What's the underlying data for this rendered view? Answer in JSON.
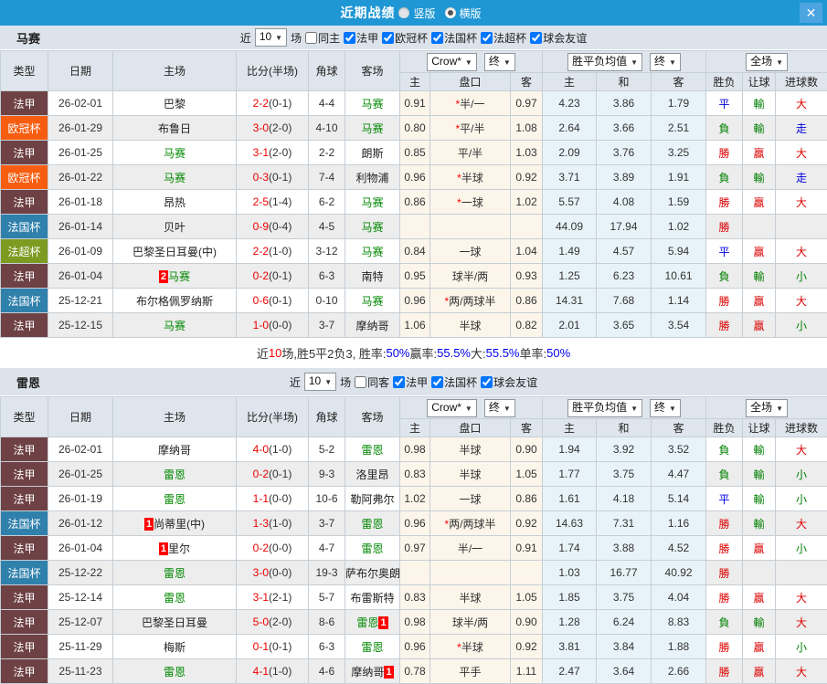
{
  "titlebar": {
    "title": "近期战绩",
    "radio_vertical": "竖版",
    "radio_horizontal": "横版",
    "close": "✕"
  },
  "colors": {
    "topbar": "#1f97d4",
    "team_highlight": "#008800",
    "score": "#ee0000",
    "score_half": "#333333",
    "badge": "#ff0000",
    "type_colors": {
      "法甲": "#6e4144",
      "欧冠杯": "#f75d11",
      "法国杯": "#2f80ab",
      "法超杯": "#7e9b21"
    },
    "result_colors": {
      "勝": "#dd0000",
      "負": "#008000",
      "平": "#0000dd",
      "贏": "#dd0000",
      "輸": "#008000",
      "大": "#dd0000",
      "小": "#008000",
      "走": "#0000dd"
    }
  },
  "table": {
    "columns": [
      "类型",
      "日期",
      "主场",
      "比分(半场)",
      "角球",
      "客场"
    ],
    "groups": [
      [
        "Crow*",
        "终"
      ],
      [
        "胜平负均值",
        "终"
      ],
      [
        "全场"
      ]
    ],
    "subcolumns": [
      "主",
      "盘口",
      "客",
      "主",
      "和",
      "客",
      "胜负",
      "让球",
      "进球数"
    ]
  },
  "sections": [
    {
      "team": "马赛",
      "filter": {
        "prefix": "近",
        "count": "10",
        "suffix": "场",
        "same": {
          "label": "同主",
          "checked": false
        },
        "leagues": [
          {
            "label": "法甲",
            "checked": true
          },
          {
            "label": "欧冠杯",
            "checked": true
          },
          {
            "label": "法国杯",
            "checked": true
          },
          {
            "label": "法超杯",
            "checked": true
          },
          {
            "label": "球会友谊",
            "checked": true
          }
        ]
      },
      "rows": [
        {
          "type": "法甲",
          "date": "26-02-01",
          "home": "巴黎",
          "home_hl": false,
          "home_badge": "",
          "score": "2-2",
          "half": "(0-1)",
          "corners": "4-4",
          "away": "马赛",
          "away_hl": true,
          "away_badge": "",
          "o1": "0.91",
          "line": "半/一",
          "line_star": true,
          "o2": "0.97",
          "avg": [
            "4.23",
            "3.86",
            "1.79"
          ],
          "res": [
            "平",
            "輸",
            "大"
          ]
        },
        {
          "type": "欧冠杯",
          "date": "26-01-29",
          "home": "布鲁日",
          "home_hl": false,
          "home_badge": "",
          "score": "3-0",
          "half": "(2-0)",
          "corners": "4-10",
          "away": "马赛",
          "away_hl": true,
          "away_badge": "",
          "o1": "0.80",
          "line": "平/半",
          "line_star": true,
          "o2": "1.08",
          "avg": [
            "2.64",
            "3.66",
            "2.51"
          ],
          "res": [
            "負",
            "輸",
            "走"
          ]
        },
        {
          "type": "法甲",
          "date": "26-01-25",
          "home": "马赛",
          "home_hl": true,
          "home_badge": "",
          "score": "3-1",
          "half": "(2-0)",
          "corners": "2-2",
          "away": "朗斯",
          "away_hl": false,
          "away_badge": "",
          "o1": "0.85",
          "line": "平/半",
          "line_star": false,
          "o2": "1.03",
          "avg": [
            "2.09",
            "3.76",
            "3.25"
          ],
          "res": [
            "勝",
            "贏",
            "大"
          ]
        },
        {
          "type": "欧冠杯",
          "date": "26-01-22",
          "home": "马赛",
          "home_hl": true,
          "home_badge": "",
          "score": "0-3",
          "half": "(0-1)",
          "corners": "7-4",
          "away": "利物浦",
          "away_hl": false,
          "away_badge": "",
          "o1": "0.96",
          "line": "半球",
          "line_star": true,
          "o2": "0.92",
          "avg": [
            "3.71",
            "3.89",
            "1.91"
          ],
          "res": [
            "負",
            "輸",
            "走"
          ]
        },
        {
          "type": "法甲",
          "date": "26-01-18",
          "home": "昂热",
          "home_hl": false,
          "home_badge": "",
          "score": "2-5",
          "half": "(1-4)",
          "corners": "6-2",
          "away": "马赛",
          "away_hl": true,
          "away_badge": "",
          "o1": "0.86",
          "line": "一球",
          "line_star": true,
          "o2": "1.02",
          "avg": [
            "5.57",
            "4.08",
            "1.59"
          ],
          "res": [
            "勝",
            "贏",
            "大"
          ]
        },
        {
          "type": "法国杯",
          "date": "26-01-14",
          "home": "贝叶",
          "home_hl": false,
          "home_badge": "",
          "score": "0-9",
          "half": "(0-4)",
          "corners": "4-5",
          "away": "马赛",
          "away_hl": true,
          "away_badge": "",
          "o1": "",
          "line": "",
          "line_star": false,
          "o2": "",
          "avg": [
            "44.09",
            "17.94",
            "1.02"
          ],
          "res": [
            "勝",
            "",
            ""
          ]
        },
        {
          "type": "法超杯",
          "date": "26-01-09",
          "home": "巴黎圣日耳曼(中)",
          "home_hl": false,
          "home_badge": "",
          "score": "2-2",
          "half": "(1-0)",
          "corners": "3-12",
          "away": "马赛",
          "away_hl": true,
          "away_badge": "",
          "o1": "0.84",
          "line": "一球",
          "line_star": false,
          "o2": "1.04",
          "avg": [
            "1.49",
            "4.57",
            "5.94"
          ],
          "res": [
            "平",
            "贏",
            "大"
          ]
        },
        {
          "type": "法甲",
          "date": "26-01-04",
          "home": "马赛",
          "home_hl": true,
          "home_badge": "2",
          "score": "0-2",
          "half": "(0-1)",
          "corners": "6-3",
          "away": "南特",
          "away_hl": false,
          "away_badge": "",
          "o1": "0.95",
          "line": "球半/两",
          "line_star": false,
          "o2": "0.93",
          "avg": [
            "1.25",
            "6.23",
            "10.61"
          ],
          "res": [
            "負",
            "輸",
            "小"
          ]
        },
        {
          "type": "法国杯",
          "date": "25-12-21",
          "home": "布尔格佩罗纳斯",
          "home_hl": false,
          "home_badge": "",
          "score": "0-6",
          "half": "(0-1)",
          "corners": "0-10",
          "away": "马赛",
          "away_hl": true,
          "away_badge": "",
          "o1": "0.96",
          "line": "两/两球半",
          "line_star": true,
          "o2": "0.86",
          "avg": [
            "14.31",
            "7.68",
            "1.14"
          ],
          "res": [
            "勝",
            "贏",
            "大"
          ]
        },
        {
          "type": "法甲",
          "date": "25-12-15",
          "home": "马赛",
          "home_hl": true,
          "home_badge": "",
          "score": "1-0",
          "half": "(0-0)",
          "corners": "3-7",
          "away": "摩纳哥",
          "away_hl": false,
          "away_badge": "",
          "o1": "1.06",
          "line": "半球",
          "line_star": false,
          "o2": "0.82",
          "avg": [
            "2.01",
            "3.65",
            "3.54"
          ],
          "res": [
            "勝",
            "贏",
            "小"
          ]
        }
      ],
      "summary": [
        {
          "text": "近",
          "color": "#333333"
        },
        {
          "text": "10",
          "color": "#ff0000"
        },
        {
          "text": "场,胜5平2负3, 胜率:",
          "color": "#333333"
        },
        {
          "text": "50%",
          "color": "#0000ee"
        },
        {
          "text": " 赢率:",
          "color": "#333333"
        },
        {
          "text": "55.5%",
          "color": "#0000ee"
        },
        {
          "text": " 大:",
          "color": "#333333"
        },
        {
          "text": "55.5%",
          "color": "#0000ee"
        },
        {
          "text": " 单率:",
          "color": "#333333"
        },
        {
          "text": "50%",
          "color": "#0000ee"
        }
      ]
    },
    {
      "team": "雷恩",
      "filter": {
        "prefix": "近",
        "count": "10",
        "suffix": "场",
        "same": {
          "label": "同客",
          "checked": false
        },
        "leagues": [
          {
            "label": "法甲",
            "checked": true
          },
          {
            "label": "法国杯",
            "checked": true
          },
          {
            "label": "球会友谊",
            "checked": true
          }
        ]
      },
      "rows": [
        {
          "type": "法甲",
          "date": "26-02-01",
          "home": "摩纳哥",
          "home_hl": false,
          "home_badge": "",
          "score": "4-0",
          "half": "(1-0)",
          "corners": "5-2",
          "away": "雷恩",
          "away_hl": true,
          "away_badge": "",
          "o1": "0.98",
          "line": "半球",
          "line_star": false,
          "o2": "0.90",
          "avg": [
            "1.94",
            "3.92",
            "3.52"
          ],
          "res": [
            "負",
            "輸",
            "大"
          ]
        },
        {
          "type": "法甲",
          "date": "26-01-25",
          "home": "雷恩",
          "home_hl": true,
          "home_badge": "",
          "score": "0-2",
          "half": "(0-1)",
          "corners": "9-3",
          "away": "洛里昂",
          "away_hl": false,
          "away_badge": "",
          "o1": "0.83",
          "line": "半球",
          "line_star": false,
          "o2": "1.05",
          "avg": [
            "1.77",
            "3.75",
            "4.47"
          ],
          "res": [
            "負",
            "輸",
            "小"
          ]
        },
        {
          "type": "法甲",
          "date": "26-01-19",
          "home": "雷恩",
          "home_hl": true,
          "home_badge": "",
          "score": "1-1",
          "half": "(0-0)",
          "corners": "10-6",
          "away": "勒阿弗尔",
          "away_hl": false,
          "away_badge": "",
          "o1": "1.02",
          "line": "一球",
          "line_star": false,
          "o2": "0.86",
          "avg": [
            "1.61",
            "4.18",
            "5.14"
          ],
          "res": [
            "平",
            "輸",
            "小"
          ]
        },
        {
          "type": "法国杯",
          "date": "26-01-12",
          "home": "尚蒂里(中)",
          "home_hl": false,
          "home_badge": "1",
          "score": "1-3",
          "half": "(1-0)",
          "corners": "3-7",
          "away": "雷恩",
          "away_hl": true,
          "away_badge": "",
          "o1": "0.96",
          "line": "两/两球半",
          "line_star": true,
          "o2": "0.92",
          "avg": [
            "14.63",
            "7.31",
            "1.16"
          ],
          "res": [
            "勝",
            "輸",
            "大"
          ]
        },
        {
          "type": "法甲",
          "date": "26-01-04",
          "home": "里尔",
          "home_hl": false,
          "home_badge": "1",
          "score": "0-2",
          "half": "(0-0)",
          "corners": "4-7",
          "away": "雷恩",
          "away_hl": true,
          "away_badge": "",
          "o1": "0.97",
          "line": "半/一",
          "line_star": false,
          "o2": "0.91",
          "avg": [
            "1.74",
            "3.88",
            "4.52"
          ],
          "res": [
            "勝",
            "贏",
            "小"
          ]
        },
        {
          "type": "法国杯",
          "date": "25-12-22",
          "home": "雷恩",
          "home_hl": true,
          "home_badge": "",
          "score": "3-0",
          "half": "(0-0)",
          "corners": "19-3",
          "away": "萨布尔奥朗尼",
          "away_hl": false,
          "away_badge": "",
          "o1": "",
          "line": "",
          "line_star": false,
          "o2": "",
          "avg": [
            "1.03",
            "16.77",
            "40.92"
          ],
          "res": [
            "勝",
            "",
            ""
          ]
        },
        {
          "type": "法甲",
          "date": "25-12-14",
          "home": "雷恩",
          "home_hl": true,
          "home_badge": "",
          "score": "3-1",
          "half": "(2-1)",
          "corners": "5-7",
          "away": "布雷斯特",
          "away_hl": false,
          "away_badge": "",
          "o1": "0.83",
          "line": "半球",
          "line_star": false,
          "o2": "1.05",
          "avg": [
            "1.85",
            "3.75",
            "4.04"
          ],
          "res": [
            "勝",
            "贏",
            "大"
          ]
        },
        {
          "type": "法甲",
          "date": "25-12-07",
          "home": "巴黎圣日耳曼",
          "home_hl": false,
          "home_badge": "",
          "score": "5-0",
          "half": "(2-0)",
          "corners": "8-6",
          "away": "雷恩",
          "away_hl": true,
          "away_badge": "1",
          "o1": "0.98",
          "line": "球半/两",
          "line_star": false,
          "o2": "0.90",
          "avg": [
            "1.28",
            "6.24",
            "8.83"
          ],
          "res": [
            "負",
            "輸",
            "大"
          ]
        },
        {
          "type": "法甲",
          "date": "25-11-29",
          "home": "梅斯",
          "home_hl": false,
          "home_badge": "",
          "score": "0-1",
          "half": "(0-1)",
          "corners": "6-3",
          "away": "雷恩",
          "away_hl": true,
          "away_badge": "",
          "o1": "0.96",
          "line": "半球",
          "line_star": true,
          "o2": "0.92",
          "avg": [
            "3.81",
            "3.84",
            "1.88"
          ],
          "res": [
            "勝",
            "贏",
            "小"
          ]
        },
        {
          "type": "法甲",
          "date": "25-11-23",
          "home": "雷恩",
          "home_hl": true,
          "home_badge": "",
          "score": "4-1",
          "half": "(1-0)",
          "corners": "4-6",
          "away": "摩纳哥",
          "away_hl": false,
          "away_badge": "1",
          "o1": "0.78",
          "line": "平手",
          "line_star": false,
          "o2": "1.11",
          "avg": [
            "2.47",
            "3.64",
            "2.66"
          ],
          "res": [
            "勝",
            "贏",
            "大"
          ]
        }
      ],
      "summary": null
    }
  ]
}
